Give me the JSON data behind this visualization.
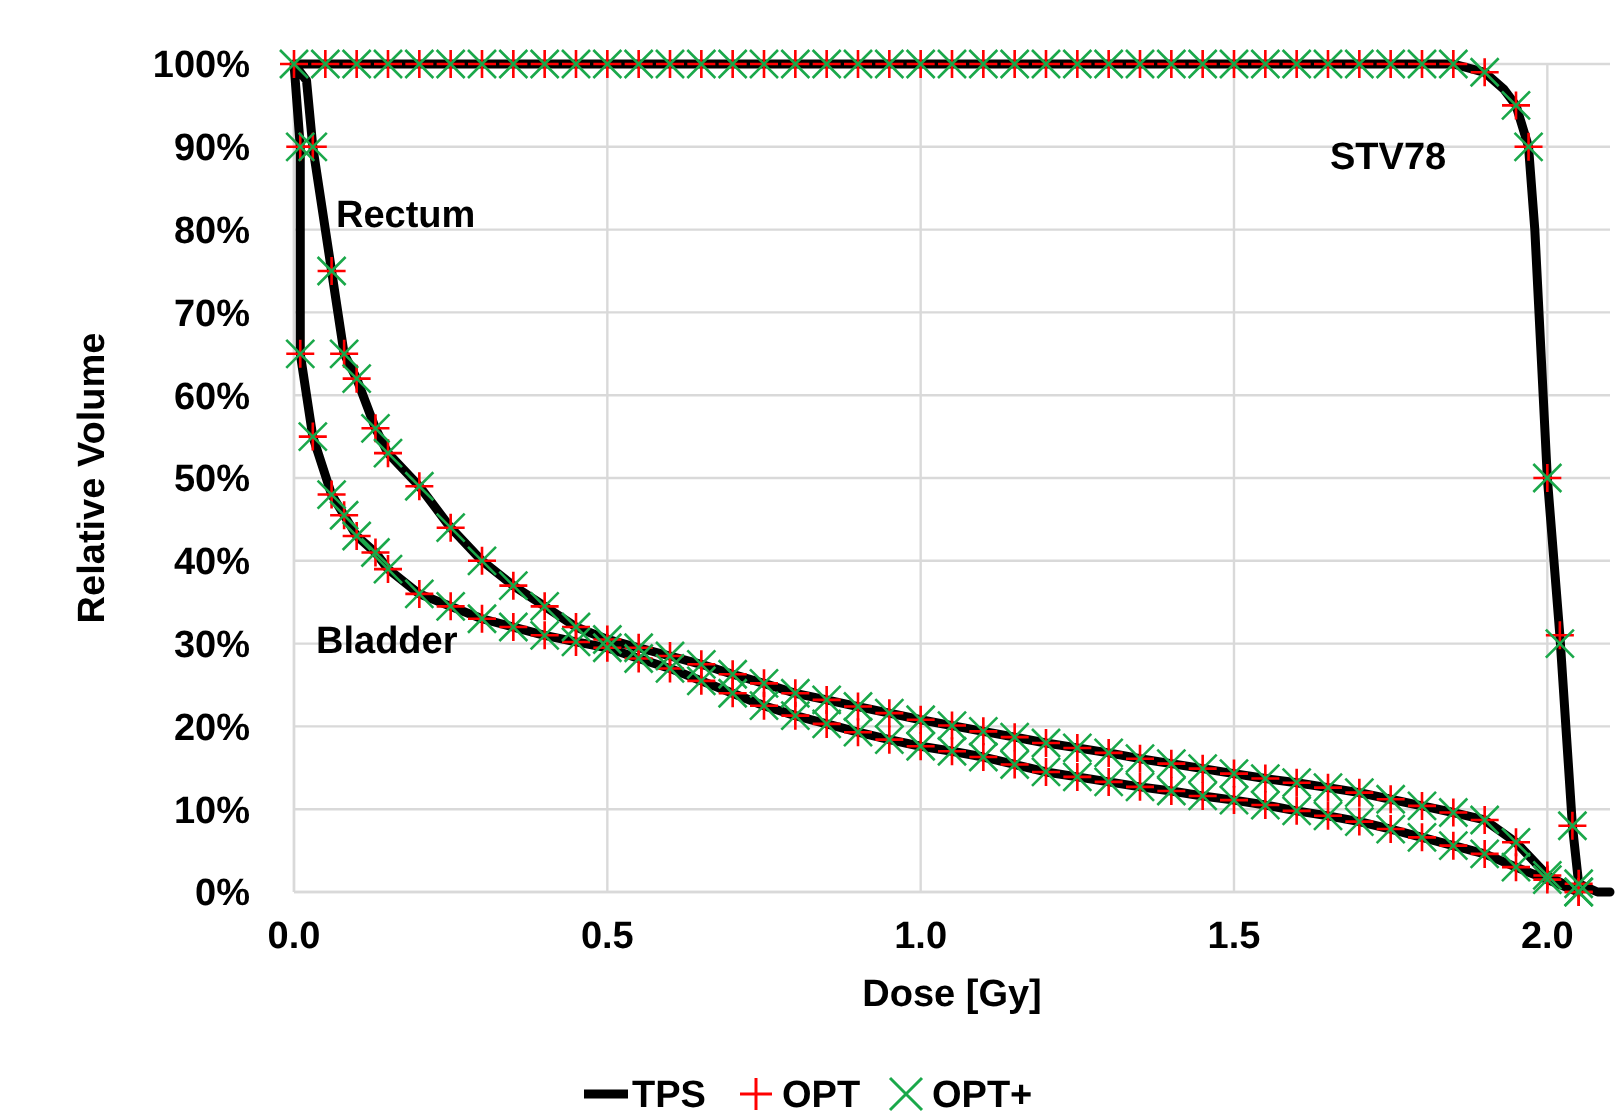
{
  "chart_data": {
    "type": "line",
    "xlabel": "Dose [Gy]",
    "ylabel": "Relative Volume",
    "xlim": [
      0,
      2.1
    ],
    "xticks": [
      {
        "value": 0,
        "label": "0.0"
      },
      {
        "value": 0.5,
        "label": "0.5"
      },
      {
        "value": 1,
        "label": "1.0"
      },
      {
        "value": 1.5,
        "label": "1.5"
      },
      {
        "value": 2,
        "label": "2.0"
      }
    ],
    "ylim": [
      0,
      100
    ],
    "yticks": [
      {
        "value": 0,
        "label": "0%"
      },
      {
        "value": 10,
        "label": "10%"
      },
      {
        "value": 20,
        "label": "20%"
      },
      {
        "value": 30,
        "label": "30%"
      },
      {
        "value": 40,
        "label": "40%"
      },
      {
        "value": 50,
        "label": "50%"
      },
      {
        "value": 60,
        "label": "60%"
      },
      {
        "value": 70,
        "label": "70%"
      },
      {
        "value": 80,
        "label": "80%"
      },
      {
        "value": 90,
        "label": "90%"
      },
      {
        "value": 100,
        "label": "100%"
      }
    ],
    "grid": true,
    "legend": "bottom",
    "annotations": [
      "Rectum",
      "Bladder",
      "STV78"
    ],
    "series": [
      {
        "name": "TPS",
        "color": "#000000",
        "marker": "none",
        "line_style": "solid",
        "x": [
          0,
          0.02,
          0.03,
          0.06,
          0.08,
          0.1,
          0.13,
          0.15,
          0.2,
          0.25,
          0.3,
          0.35,
          0.4,
          0.45,
          0.5,
          0.55,
          0.6,
          0.65,
          0.7,
          0.75,
          0.8,
          0.85,
          0.9,
          0.95,
          1.0,
          1.05,
          1.1,
          1.15,
          1.2,
          1.25,
          1.3,
          1.35,
          1.4,
          1.45,
          1.5,
          1.55,
          1.6,
          1.65,
          1.7,
          1.75,
          1.8,
          1.85,
          1.9,
          1.95,
          2.0,
          2.05,
          null,
          0,
          0.01,
          0.01,
          0.03,
          0.06,
          0.08,
          0.1,
          0.13,
          0.15,
          0.2,
          0.25,
          0.3,
          0.35,
          0.4,
          0.45,
          0.5,
          0.55,
          0.6,
          0.65,
          0.7,
          0.75,
          0.8,
          0.85,
          0.9,
          0.95,
          1.0,
          1.05,
          1.1,
          1.15,
          1.2,
          1.25,
          1.3,
          1.35,
          1.4,
          1.45,
          1.5,
          1.55,
          1.6,
          1.65,
          1.7,
          1.75,
          1.8,
          1.85,
          1.9,
          1.95,
          2.0,
          2.05,
          null,
          0,
          1.85,
          1.9,
          1.93,
          1.95,
          1.97,
          1.98,
          2.0,
          2.02,
          2.04,
          2.05,
          2.08,
          2.1
        ],
        "values": [
          100,
          98,
          90,
          75,
          65,
          62,
          56,
          53,
          49,
          44,
          40,
          37,
          34.5,
          32,
          30.5,
          29.5,
          28.5,
          27.5,
          26.3,
          25.2,
          24,
          23.2,
          22.4,
          21.6,
          20.8,
          20.1,
          19.4,
          18.7,
          18,
          17.4,
          16.8,
          16.1,
          15.5,
          14.9,
          14.3,
          13.7,
          13.2,
          12.6,
          12,
          11.2,
          10.4,
          9.6,
          8.7,
          6,
          2,
          0,
          null,
          100,
          90,
          65,
          55,
          48,
          45.5,
          43,
          41,
          39,
          36,
          34.5,
          33,
          32,
          31,
          30.2,
          29.5,
          28.2,
          27,
          25.5,
          24,
          22.5,
          21.3,
          20.3,
          19.3,
          18.4,
          17.6,
          17,
          16.3,
          15.4,
          14.5,
          13.9,
          13.3,
          12.7,
          12.2,
          11.6,
          11.1,
          10.5,
          9.8,
          9.2,
          8.5,
          7.6,
          6.6,
          5.6,
          4.6,
          3,
          1.5,
          0,
          null,
          100,
          100,
          99,
          97,
          95,
          90,
          80,
          50,
          31,
          8,
          1,
          0,
          0
        ]
      },
      {
        "name": "OPT",
        "type": "scatter",
        "color": "#ff0000",
        "marker": "plus",
        "x": [
          0,
          0.03,
          0.06,
          0.08,
          0.1,
          0.13,
          0.15,
          0.2,
          0.25,
          0.3,
          0.35,
          0.4,
          0.45,
          0.5,
          0.55,
          0.6,
          0.65,
          0.7,
          0.75,
          0.8,
          0.85,
          0.9,
          0.95,
          1.0,
          1.05,
          1.1,
          1.15,
          1.2,
          1.25,
          1.3,
          1.35,
          1.4,
          1.45,
          1.5,
          1.55,
          1.6,
          1.65,
          1.7,
          1.75,
          1.8,
          1.85,
          1.9,
          1.95,
          2.0,
          2.05,
          0.01,
          0.01,
          0.03,
          0.06,
          0.08,
          0.1,
          0.13,
          0.15,
          0.2,
          0.25,
          0.3,
          0.35,
          0.4,
          0.45,
          0.5,
          0.55,
          0.6,
          0.65,
          0.7,
          0.75,
          0.8,
          0.85,
          0.9,
          0.95,
          1.0,
          1.05,
          1.1,
          1.15,
          1.2,
          1.25,
          1.3,
          1.35,
          1.4,
          1.45,
          1.5,
          1.55,
          1.6,
          1.65,
          1.7,
          1.75,
          1.8,
          1.85,
          1.9,
          1.95,
          2.0,
          2.05,
          0.05,
          0.1,
          0.15,
          0.2,
          0.25,
          0.3,
          0.35,
          0.4,
          0.45,
          0.5,
          0.55,
          0.6,
          0.65,
          0.7,
          0.75,
          0.8,
          0.85,
          0.9,
          0.95,
          1.0,
          1.05,
          1.1,
          1.15,
          1.2,
          1.25,
          1.3,
          1.35,
          1.4,
          1.45,
          1.5,
          1.55,
          1.6,
          1.65,
          1.7,
          1.75,
          1.8,
          1.85,
          1.9,
          1.95,
          1.97,
          2.0,
          2.02,
          2.04,
          2.05
        ],
        "values": [
          100,
          90,
          75,
          65,
          62,
          56,
          53,
          49,
          44,
          40,
          37,
          34.5,
          32,
          30.5,
          29.5,
          28.5,
          27.5,
          26.3,
          25.2,
          24,
          23.2,
          22.4,
          21.6,
          20.8,
          20.1,
          19.4,
          18.7,
          18,
          17.4,
          16.8,
          16.1,
          15.5,
          14.9,
          14.3,
          13.7,
          13.2,
          12.6,
          12,
          11.2,
          10.4,
          9.6,
          8.7,
          6,
          2,
          0,
          90,
          65,
          55,
          48,
          45.5,
          43,
          41,
          39,
          36,
          34.5,
          33,
          32,
          31,
          30.2,
          29.5,
          28.2,
          27,
          25.5,
          24,
          22.5,
          21.3,
          20.3,
          19.3,
          18.4,
          17.6,
          17,
          16.3,
          15.4,
          14.5,
          13.9,
          13.3,
          12.7,
          12.2,
          11.6,
          11.1,
          10.5,
          9.8,
          9.2,
          8.5,
          7.6,
          6.6,
          5.6,
          4.6,
          3,
          1.5,
          0,
          100,
          100,
          100,
          100,
          100,
          100,
          100,
          100,
          100,
          100,
          100,
          100,
          100,
          100,
          100,
          100,
          100,
          100,
          100,
          100,
          100,
          100,
          100,
          100,
          100,
          100,
          100,
          100,
          100,
          100,
          100,
          100,
          100,
          100,
          100,
          100,
          100,
          99,
          95,
          90,
          50,
          31,
          8,
          1
        ]
      },
      {
        "name": "OPT+",
        "type": "scatter",
        "color": "#1aa84a",
        "marker": "cross",
        "x": [
          0,
          0.03,
          0.06,
          0.08,
          0.1,
          0.13,
          0.15,
          0.2,
          0.25,
          0.3,
          0.35,
          0.4,
          0.45,
          0.5,
          0.55,
          0.6,
          0.65,
          0.7,
          0.75,
          0.8,
          0.85,
          0.9,
          0.95,
          1.0,
          1.05,
          1.1,
          1.15,
          1.2,
          1.25,
          1.3,
          1.35,
          1.4,
          1.45,
          1.5,
          1.55,
          1.6,
          1.65,
          1.7,
          1.75,
          1.8,
          1.85,
          1.9,
          1.95,
          2.0,
          2.05,
          0.01,
          0.01,
          0.03,
          0.06,
          0.08,
          0.1,
          0.13,
          0.15,
          0.2,
          0.25,
          0.3,
          0.35,
          0.4,
          0.45,
          0.5,
          0.55,
          0.6,
          0.65,
          0.7,
          0.75,
          0.8,
          0.85,
          0.9,
          0.95,
          1.0,
          1.05,
          1.1,
          1.15,
          1.2,
          1.25,
          1.3,
          1.35,
          1.4,
          1.45,
          1.5,
          1.55,
          1.6,
          1.65,
          1.7,
          1.75,
          1.8,
          1.85,
          1.9,
          1.95,
          2.0,
          2.05,
          0.05,
          0.1,
          0.15,
          0.2,
          0.25,
          0.3,
          0.35,
          0.4,
          0.45,
          0.5,
          0.55,
          0.6,
          0.65,
          0.7,
          0.75,
          0.8,
          0.85,
          0.9,
          0.95,
          1.0,
          1.05,
          1.1,
          1.15,
          1.2,
          1.25,
          1.3,
          1.35,
          1.4,
          1.45,
          1.5,
          1.55,
          1.6,
          1.65,
          1.7,
          1.75,
          1.8,
          1.85,
          1.9,
          1.95,
          1.97,
          2.0,
          2.02,
          2.04,
          2.05
        ],
        "values": [
          100,
          90,
          75,
          65,
          62,
          56,
          53,
          49,
          44,
          40,
          37,
          34.5,
          32,
          30.5,
          29.5,
          28.5,
          27.5,
          26.3,
          25.2,
          24,
          23.2,
          22.4,
          21.6,
          20.8,
          20.1,
          19.4,
          18.7,
          18,
          17.4,
          16.8,
          16.1,
          15.5,
          14.9,
          14.3,
          13.7,
          13.2,
          12.6,
          12,
          11.2,
          10.4,
          9.6,
          8.7,
          6,
          2,
          0,
          90,
          65,
          55,
          48,
          45.5,
          43,
          41,
          39,
          36,
          34.5,
          33,
          32,
          31,
          30.2,
          29.5,
          28.2,
          27,
          25.5,
          24,
          22.5,
          21.3,
          20.3,
          19.3,
          18.4,
          17.6,
          17,
          16.3,
          15.4,
          14.5,
          13.9,
          13.3,
          12.7,
          12.2,
          11.6,
          11.1,
          10.5,
          9.8,
          9.2,
          8.5,
          7.6,
          6.6,
          5.6,
          4.6,
          3,
          1.5,
          0,
          100,
          100,
          100,
          100,
          100,
          100,
          100,
          100,
          100,
          100,
          100,
          100,
          100,
          100,
          100,
          100,
          100,
          100,
          100,
          100,
          100,
          100,
          100,
          100,
          100,
          100,
          100,
          100,
          100,
          100,
          100,
          100,
          100,
          100,
          100,
          100,
          100,
          99,
          95,
          90,
          50,
          30,
          8,
          1
        ]
      }
    ]
  }
}
